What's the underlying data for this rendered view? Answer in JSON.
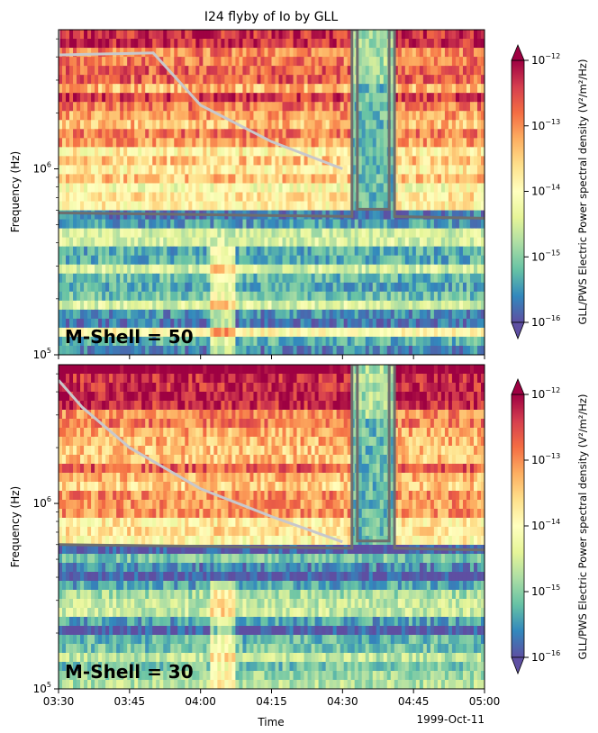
{
  "title": "I24 flyby of Io by GLL",
  "colors": {
    "cmap": [
      "#5e4fa2",
      "#3288bd",
      "#66c2a5",
      "#abdda4",
      "#e6f598",
      "#ffffbf",
      "#fee08b",
      "#fdae61",
      "#f46d43",
      "#d53e4f",
      "#9e0142"
    ],
    "model_curve": "#c8c8cc",
    "boundary_line": "#6e6e6e"
  },
  "chart_data": [
    {
      "type": "heatmap",
      "panel": "top",
      "annotation": "M-Shell = 50",
      "ylabel": "Frequency (Hz)",
      "xlabel": "",
      "yscale": "log",
      "ylim": [
        100000,
        5600000
      ],
      "ytick_labels": [
        "10",
        "10"
      ],
      "ytick_exps": [
        "5",
        "6"
      ],
      "xlim": [
        "03:30",
        "05:00"
      ],
      "colorbar": {
        "label": "GLL/PWS Electric Power spectral density (V²/m²/Hz)",
        "scale": "log",
        "range": [
          1e-16,
          1e-12
        ],
        "tick_base": "10",
        "tick_exps": [
          "−16",
          "−15",
          "−14",
          "−13",
          "−12"
        ],
        "extend": "both"
      },
      "overlays": [
        {
          "kind": "model curve",
          "color": "light gray",
          "x_min": [
            "03:30",
            4100000
          ],
          "x": [
            "03:50",
            "04:00",
            "04:15",
            "04:30"
          ],
          "y": [
            4200000,
            2200000,
            1400000,
            1000000
          ]
        },
        {
          "kind": "step boundary",
          "color": "dark gray",
          "level": 580000,
          "steps_at": [
            "04:32",
            "04:41"
          ]
        }
      ]
    },
    {
      "type": "heatmap",
      "panel": "bottom",
      "annotation": "M-Shell = 30",
      "ylabel": "Frequency (Hz)",
      "xlabel": "Time",
      "date_label": "1999-Oct-11",
      "yscale": "log",
      "ylim": [
        100000,
        5600000
      ],
      "ytick_labels": [
        "10",
        "10"
      ],
      "ytick_exps": [
        "5",
        "6"
      ],
      "xlim": [
        "03:30",
        "05:00"
      ],
      "xtick_labels": [
        "03:30",
        "03:45",
        "04:00",
        "04:15",
        "04:30",
        "04:45",
        "05:00"
      ],
      "colorbar": {
        "label": "GLL/PWS Electric Power spectral density (V²/m²/Hz)",
        "scale": "log",
        "range": [
          1e-16,
          1e-12
        ],
        "tick_base": "10",
        "tick_exps": [
          "−16",
          "−15",
          "−14",
          "−13",
          "−12"
        ],
        "extend": "both"
      },
      "overlays": [
        {
          "kind": "model curve",
          "color": "light gray",
          "x_min": [
            "03:35",
            3300000
          ],
          "x": [
            "03:45",
            "04:00",
            "04:15",
            "04:30"
          ],
          "y": [
            2000000,
            1200000,
            850000,
            620000
          ]
        },
        {
          "kind": "step boundary",
          "color": "dark gray",
          "level": 600000,
          "steps_at": [
            "04:32",
            "04:41"
          ]
        }
      ]
    }
  ]
}
